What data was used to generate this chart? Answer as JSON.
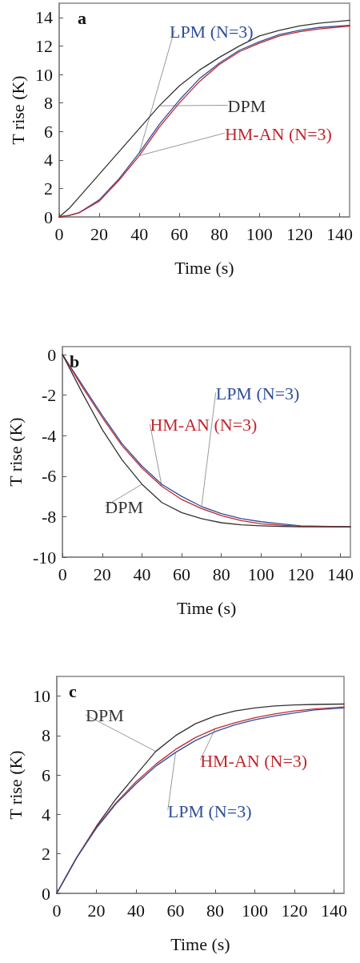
{
  "chart_data": [
    {
      "type": "line",
      "title": "a",
      "xlabel": "Time (s)",
      "ylabel": "T rise (K)",
      "xlim": [
        0,
        145
      ],
      "xticks": [
        0,
        20,
        40,
        60,
        80,
        100,
        120,
        140
      ],
      "ylim": [
        0,
        15
      ],
      "yticks": [
        0,
        2,
        4,
        6,
        8,
        10,
        12,
        14
      ],
      "grid": false,
      "legend": false,
      "marker": "none",
      "line_style": "solid",
      "x": [
        0,
        5,
        10,
        20,
        30,
        40,
        50,
        60,
        70,
        80,
        90,
        100,
        110,
        120,
        130,
        145
      ],
      "series": [
        {
          "name": "LPM (N=3)",
          "color": "#2f4f9a",
          "values": [
            0,
            0.1,
            0.3,
            1.2,
            2.7,
            4.5,
            6.5,
            8.2,
            9.7,
            10.8,
            11.7,
            12.3,
            12.8,
            13.1,
            13.3,
            13.45
          ]
        },
        {
          "name": "DPM",
          "color": "#333333",
          "values": [
            0,
            0.6,
            1.4,
            3.0,
            4.6,
            6.2,
            7.8,
            9.2,
            10.3,
            11.2,
            12.0,
            12.7,
            13.1,
            13.4,
            13.6,
            13.8
          ]
        },
        {
          "name": "HM-AN (N=3)",
          "color": "#c0282e",
          "values": [
            0,
            0.1,
            0.3,
            1.1,
            2.6,
            4.3,
            6.3,
            8.0,
            9.5,
            10.7,
            11.6,
            12.2,
            12.7,
            13.0,
            13.2,
            13.4
          ]
        }
      ]
    },
    {
      "type": "line",
      "title": "b",
      "xlabel": "Time (s)",
      "ylabel": "T rise (K)",
      "xlim": [
        0,
        145
      ],
      "xticks": [
        0,
        20,
        40,
        60,
        80,
        100,
        120,
        140
      ],
      "ylim": [
        -10,
        0.4
      ],
      "yticks": [
        -10,
        -8,
        -6,
        -4,
        -2,
        0
      ],
      "grid": false,
      "legend": false,
      "marker": "none",
      "line_style": "solid",
      "x": [
        0,
        10,
        20,
        30,
        40,
        50,
        60,
        70,
        80,
        90,
        100,
        110,
        120,
        145
      ],
      "series": [
        {
          "name": "LPM (N=3)",
          "color": "#2f4f9a",
          "values": [
            0,
            -1.5,
            -3.0,
            -4.4,
            -5.5,
            -6.4,
            -7.0,
            -7.5,
            -7.85,
            -8.1,
            -8.25,
            -8.35,
            -8.45,
            -8.5
          ]
        },
        {
          "name": "HM-AN (N=3)",
          "color": "#c0282e",
          "values": [
            0,
            -1.6,
            -3.1,
            -4.5,
            -5.6,
            -6.5,
            -7.15,
            -7.6,
            -7.95,
            -8.2,
            -8.35,
            -8.42,
            -8.47,
            -8.5
          ]
        },
        {
          "name": "DPM",
          "color": "#333333",
          "values": [
            0,
            -1.9,
            -3.7,
            -5.2,
            -6.4,
            -7.3,
            -7.8,
            -8.1,
            -8.3,
            -8.4,
            -8.45,
            -8.48,
            -8.5,
            -8.5
          ]
        }
      ]
    },
    {
      "type": "line",
      "title": "c",
      "xlabel": "Time (s)",
      "ylabel": "T rise (K)",
      "xlim": [
        0,
        145
      ],
      "xticks": [
        0,
        20,
        40,
        60,
        80,
        100,
        120,
        140
      ],
      "ylim": [
        0,
        11
      ],
      "yticks": [
        0,
        2,
        4,
        6,
        8,
        10
      ],
      "grid": false,
      "legend": false,
      "marker": "none",
      "line_style": "solid",
      "x": [
        0,
        10,
        20,
        30,
        40,
        50,
        60,
        70,
        80,
        90,
        100,
        110,
        120,
        130,
        145
      ],
      "series": [
        {
          "name": "DPM",
          "color": "#333333",
          "values": [
            0,
            1.8,
            3.4,
            4.8,
            6.0,
            7.2,
            8.0,
            8.6,
            9.0,
            9.25,
            9.4,
            9.5,
            9.55,
            9.58,
            9.6
          ]
        },
        {
          "name": "HM-AN (N=3)",
          "color": "#c0282e",
          "values": [
            0,
            1.8,
            3.35,
            4.6,
            5.65,
            6.55,
            7.3,
            7.9,
            8.35,
            8.65,
            8.9,
            9.1,
            9.25,
            9.35,
            9.45
          ]
        },
        {
          "name": "LPM (N=3)",
          "color": "#2f4f9a",
          "values": [
            0,
            1.8,
            3.3,
            4.55,
            5.55,
            6.45,
            7.15,
            7.75,
            8.2,
            8.55,
            8.8,
            9.0,
            9.15,
            9.3,
            9.4
          ]
        }
      ]
    }
  ]
}
